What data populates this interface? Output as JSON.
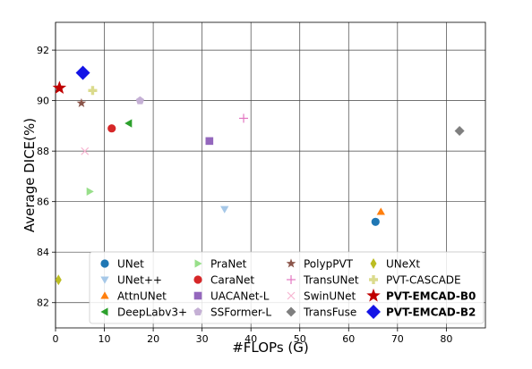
{
  "chart_data": {
    "type": "scatter",
    "title": "",
    "xlabel": "#FLOPs (G)",
    "ylabel": "Average DICE(%)",
    "xlim": [
      0,
      88
    ],
    "ylim": [
      81,
      93.1
    ],
    "xticks": [
      "0",
      "10",
      "20",
      "30",
      "40",
      "50",
      "60",
      "70",
      "80"
    ],
    "yticks": [
      "82",
      "84",
      "86",
      "88",
      "90",
      "92"
    ],
    "grid": true,
    "legend_position": "bottom-center",
    "series": [
      {
        "name": "UNet",
        "x": 65.5,
        "y": 85.2,
        "marker": "circle",
        "color": "#1f77b4",
        "bold": false
      },
      {
        "name": "UNet++",
        "x": 34.6,
        "y": 85.7,
        "marker": "triangle-down",
        "color": "#a6c8e8",
        "bold": false
      },
      {
        "name": "AttnUNet",
        "x": 66.6,
        "y": 85.6,
        "marker": "triangle-up",
        "color": "#ff7f0e",
        "bold": false
      },
      {
        "name": "DeepLabv3+",
        "x": 15.0,
        "y": 89.1,
        "marker": "triangle-left",
        "color": "#2ca02c",
        "bold": false
      },
      {
        "name": "PraNet",
        "x": 7.0,
        "y": 86.4,
        "marker": "triangle-right",
        "color": "#98df8a",
        "bold": false
      },
      {
        "name": "CaraNet",
        "x": 11.5,
        "y": 88.9,
        "marker": "circle",
        "color": "#d62728",
        "bold": false
      },
      {
        "name": "UACANet-L",
        "x": 31.5,
        "y": 88.4,
        "marker": "square",
        "color": "#9467bd",
        "bold": false
      },
      {
        "name": "SSFormer-L",
        "x": 17.3,
        "y": 90.0,
        "marker": "pentagon",
        "color": "#c5b0d5",
        "bold": false
      },
      {
        "name": "PolypPVT",
        "x": 5.3,
        "y": 89.9,
        "marker": "star",
        "color": "#8c564b",
        "bold": false
      },
      {
        "name": "TransUNet",
        "x": 38.5,
        "y": 89.3,
        "marker": "plus",
        "color": "#e377c2",
        "bold": false
      },
      {
        "name": "SwinUNet",
        "x": 6.0,
        "y": 88.0,
        "marker": "x",
        "color": "#f7b6d2",
        "bold": false
      },
      {
        "name": "TransFuse",
        "x": 82.7,
        "y": 88.8,
        "marker": "diamond",
        "color": "#7f7f7f",
        "bold": false
      },
      {
        "name": "UNeXt",
        "x": 0.6,
        "y": 82.9,
        "marker": "thin-diamond",
        "color": "#bcbd22",
        "bold": false
      },
      {
        "name": "PVT-CASCADE",
        "x": 7.6,
        "y": 90.4,
        "marker": "plus-filled",
        "color": "#dbdb8d",
        "bold": false
      },
      {
        "name": "PVT-EMCAD-B0",
        "x": 0.8,
        "y": 90.5,
        "marker": "star",
        "color": "#c00000",
        "bold": true
      },
      {
        "name": "PVT-EMCAD-B2",
        "x": 5.6,
        "y": 91.1,
        "marker": "diamond",
        "color": "#1414e6",
        "bold": true
      }
    ]
  }
}
